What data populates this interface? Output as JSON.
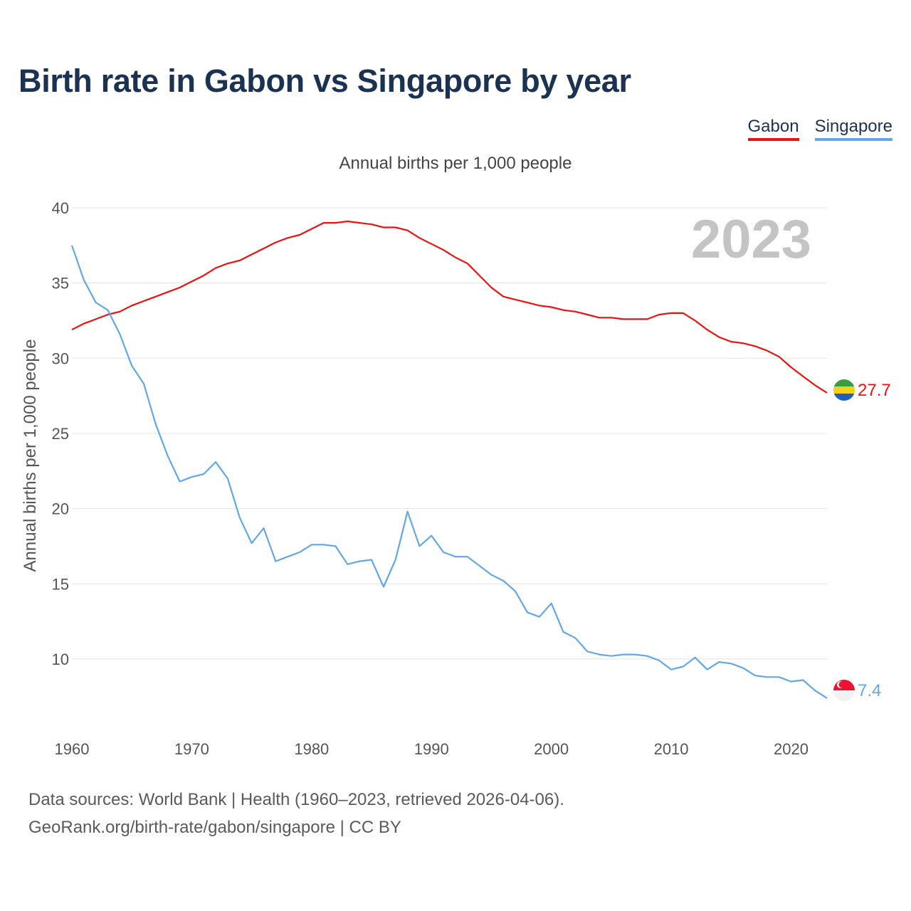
{
  "title": "Birth rate in Gabon vs Singapore by year",
  "subtitle": "Annual births per 1,000 people",
  "legend": [
    {
      "name": "Gabon",
      "color": "#ee1111"
    },
    {
      "name": "Singapore",
      "color": "#62a8e8"
    }
  ],
  "year_label": "2023",
  "footer": {
    "line1": "Data sources: World Bank | Health (1960–2023, retrieved 2026-04-06).",
    "line2": "GeoRank.org/birth-rate/gabon/singapore | CC BY"
  },
  "chart_data": {
    "type": "line",
    "title": "Birth rate in Gabon vs Singapore by year",
    "ylabel": "Annual births per 1,000 people",
    "xlabel": "",
    "xlim": [
      1960,
      2023
    ],
    "ylim": [
      5.5,
      40
    ],
    "yticks": [
      10,
      15,
      20,
      25,
      30,
      35,
      40
    ],
    "xticks": [
      1960,
      1970,
      1980,
      1990,
      2000,
      2010,
      2020
    ],
    "grid": true,
    "x": [
      1960,
      1961,
      1962,
      1963,
      1964,
      1965,
      1966,
      1967,
      1968,
      1969,
      1970,
      1971,
      1972,
      1973,
      1974,
      1975,
      1976,
      1977,
      1978,
      1979,
      1980,
      1981,
      1982,
      1983,
      1984,
      1985,
      1986,
      1987,
      1988,
      1989,
      1990,
      1991,
      1992,
      1993,
      1994,
      1995,
      1996,
      1997,
      1998,
      1999,
      2000,
      2001,
      2002,
      2003,
      2004,
      2005,
      2006,
      2007,
      2008,
      2009,
      2010,
      2011,
      2012,
      2013,
      2014,
      2015,
      2016,
      2017,
      2018,
      2019,
      2020,
      2021,
      2022,
      2023
    ],
    "series": [
      {
        "name": "Gabon",
        "color": "#ee1111",
        "last_label": "27.7",
        "values": [
          31.9,
          32.3,
          32.6,
          32.9,
          33.1,
          33.5,
          33.8,
          34.1,
          34.4,
          34.7,
          35.1,
          35.5,
          36.0,
          36.3,
          36.5,
          36.9,
          37.3,
          37.7,
          38.0,
          38.2,
          38.6,
          39.0,
          39.0,
          39.1,
          39.0,
          38.9,
          38.7,
          38.7,
          38.5,
          38.0,
          37.6,
          37.2,
          36.7,
          36.3,
          35.5,
          34.7,
          34.1,
          33.9,
          33.7,
          33.5,
          33.4,
          33.2,
          33.1,
          32.9,
          32.7,
          32.7,
          32.6,
          32.6,
          32.6,
          32.9,
          33.0,
          33.0,
          32.5,
          31.9,
          31.4,
          31.1,
          31.0,
          30.8,
          30.5,
          30.1,
          29.4,
          28.8,
          28.2,
          27.7
        ]
      },
      {
        "name": "Singapore",
        "color": "#62a8e8",
        "last_label": "7.4",
        "values": [
          37.5,
          35.2,
          33.7,
          33.2,
          31.6,
          29.5,
          28.3,
          25.6,
          23.5,
          21.8,
          22.1,
          22.3,
          23.1,
          22.0,
          19.4,
          17.7,
          18.7,
          16.5,
          16.8,
          17.1,
          17.6,
          17.6,
          17.5,
          16.3,
          16.5,
          16.6,
          14.8,
          16.6,
          19.8,
          17.5,
          18.2,
          17.1,
          16.8,
          16.8,
          16.2,
          15.6,
          15.2,
          14.5,
          13.1,
          12.8,
          13.7,
          11.8,
          11.4,
          10.5,
          10.3,
          10.2,
          10.3,
          10.3,
          10.2,
          9.9,
          9.3,
          9.5,
          10.1,
          9.3,
          9.8,
          9.7,
          9.4,
          8.9,
          8.8,
          8.8,
          8.5,
          8.6,
          7.9,
          7.4
        ]
      }
    ]
  }
}
